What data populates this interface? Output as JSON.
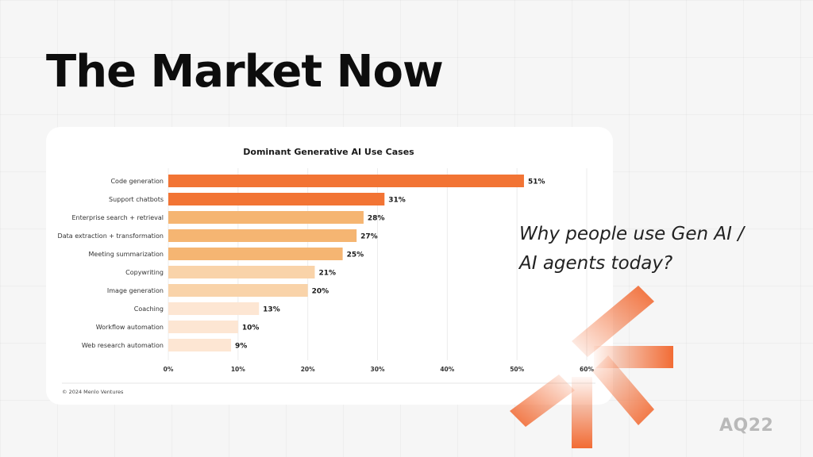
{
  "slide": {
    "title": "The Market Now",
    "question": "Why people use Gen AI / AI agents today?",
    "logo": "AQ22"
  },
  "colors": {
    "background": "#f6f6f6",
    "accent": "#f26c35",
    "bar_shades": [
      "#f27434",
      "#f27434",
      "#f5b572",
      "#f5b572",
      "#f5b572",
      "#f9d3a9",
      "#f9d3a9",
      "#fde6d3",
      "#fde6d3",
      "#fde6d3"
    ]
  },
  "chart_data": {
    "type": "bar",
    "orientation": "horizontal",
    "title": "Dominant Generative AI Use Cases",
    "categories": [
      "Code generation",
      "Support chatbots",
      "Enterprise search + retrieval",
      "Data extraction + transformation",
      "Meeting summarization",
      "Copywriting",
      "Image generation",
      "Coaching",
      "Workflow automation",
      "Web research automation"
    ],
    "values": [
      51,
      31,
      28,
      27,
      25,
      21,
      20,
      13,
      10,
      9
    ],
    "value_labels": [
      "51%",
      "31%",
      "28%",
      "27%",
      "25%",
      "21%",
      "20%",
      "13%",
      "10%",
      "9%"
    ],
    "xlim": [
      0,
      60
    ],
    "xticks": [
      "0%",
      "10%",
      "20%",
      "30%",
      "40%",
      "50%",
      "60%"
    ],
    "grid": true,
    "source": "© 2024 Menlo Ventures"
  }
}
